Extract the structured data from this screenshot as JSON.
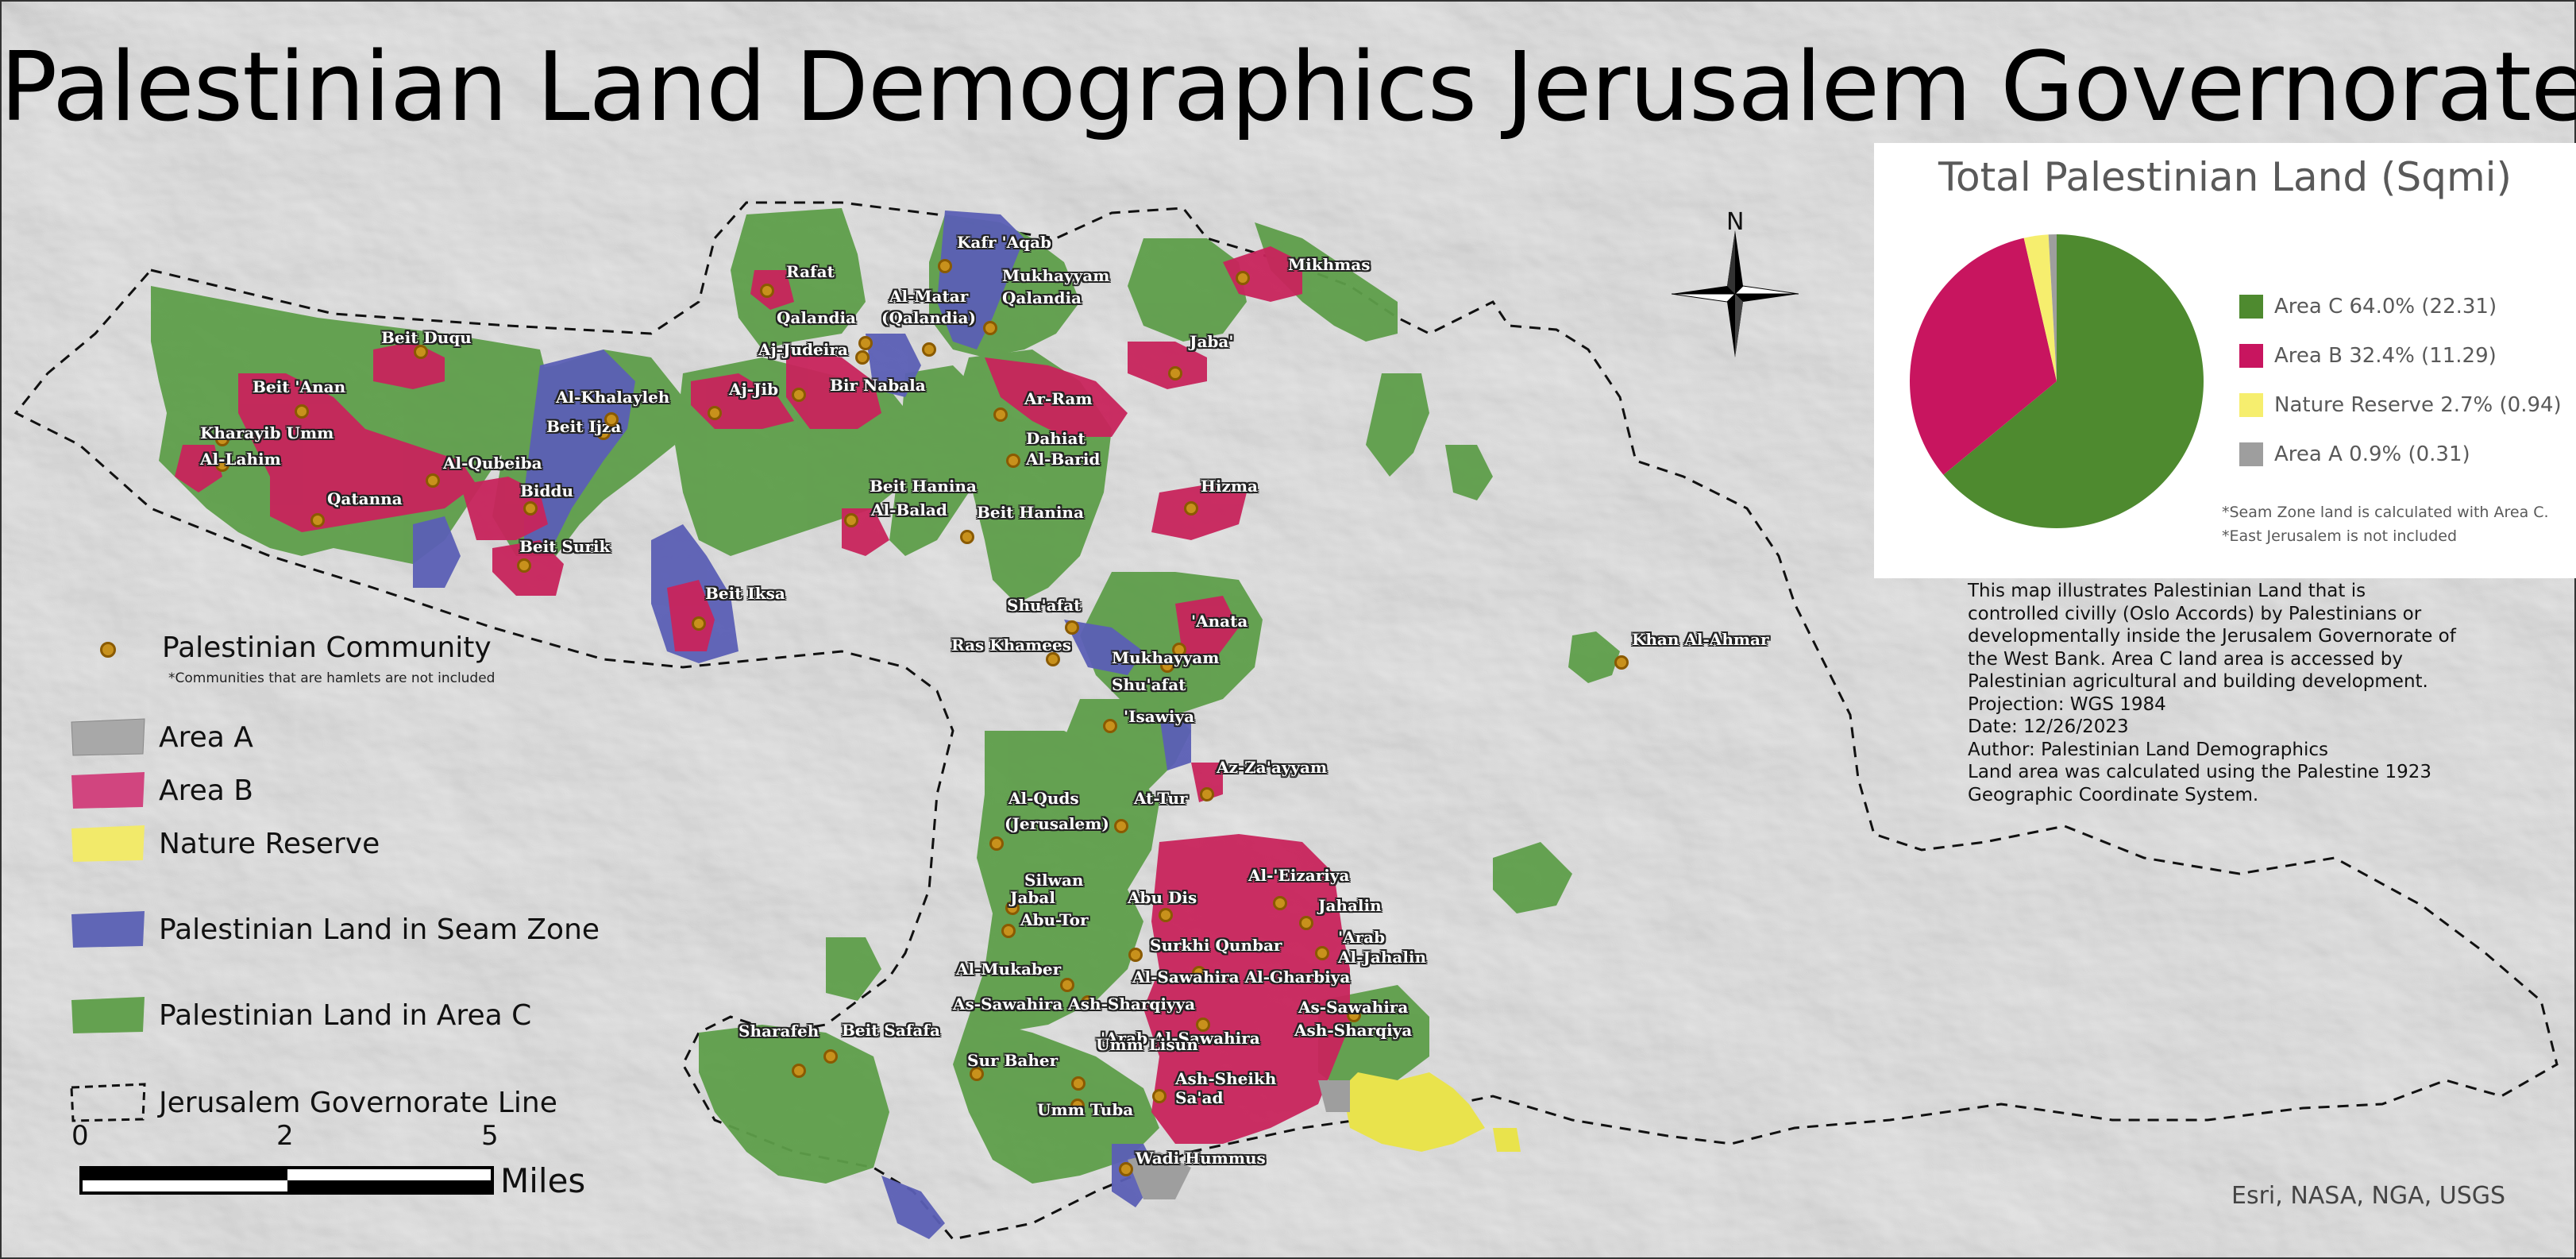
{
  "map": {
    "title": "Palestinian Land Demographics Jerusalem Governorate",
    "credits": "Esri, NASA, NGA, USGS",
    "north_label": "N",
    "colors": {
      "area_a": "#a8a8a8",
      "area_b": "#c8255e",
      "nature_reserve": "#f0ea5a",
      "seam_zone": "#5a5fb8",
      "area_c": "#5a9b45",
      "community": "#c8911c"
    }
  },
  "legend": {
    "community": {
      "label": "Palestinian Community",
      "note": "*Communities that are hamlets are not included"
    },
    "items": [
      {
        "label": "Area A",
        "color": "#a8a8a8"
      },
      {
        "label": "Area B",
        "color": "#d1457f"
      },
      {
        "label": "Nature Reserve",
        "color": "#f2ea6a"
      },
      {
        "label": "Palestinian Land in Seam Zone",
        "color": "#6066b6"
      },
      {
        "label": "Palestinian Land in Area C",
        "color": "#64a150"
      },
      {
        "label": "Jerusalem Governorate Line",
        "color": "none"
      }
    ]
  },
  "scale_bar": {
    "ticks": [
      "0",
      "2",
      "5"
    ],
    "units": "Miles"
  },
  "chart_data": {
    "type": "pie",
    "title": "Total Palestinian Land (Sqmi)",
    "slices": [
      {
        "label": "Area C 64.0% (22.31)",
        "name": "Area C",
        "value": 22.31,
        "percent": 64.0,
        "color": "#4e8a2f"
      },
      {
        "label": "Area B 32.4% (11.29)",
        "name": "Area B",
        "value": 11.29,
        "percent": 32.4,
        "color": "#c8155f"
      },
      {
        "label": "Nature Reserve 2.7% (0.94)",
        "name": "Nature Reserve",
        "value": 0.94,
        "percent": 2.7,
        "color": "#f6ee6e"
      },
      {
        "label": "Area A 0.9% (0.31)",
        "name": "Area A",
        "value": 0.31,
        "percent": 0.9,
        "color": "#9e9e9e"
      }
    ],
    "legend_position": "right",
    "notes": [
      "*Seam Zone land is calculated with Area C.",
      "*East Jerusalem is not included"
    ]
  },
  "description": [
    "This map illustrates Palestinian Land that is",
    "controlled civilly (Oslo Accords) by Palestinians or",
    "developmentally inside the Jerusalem Governorate of",
    "the West Bank. Area C land area is accessed by",
    "Palestinian agricultural and building development.",
    "Projection: WGS 1984",
    "Date: 12/26/2023",
    "Author: Palestinian Land Demographics",
    "Land area was calculated using the Palestine 1923",
    "Geographic Coordinate System."
  ],
  "places": [
    "Beit Duqu",
    "Beit 'Anan",
    "Kharayib Umm",
    "Al-Lahim",
    "Al-Qubeiba",
    "Beit Ijza",
    "Al-Khalayleh",
    "Qatanna",
    "Biddu",
    "Beit Surik",
    "Beit Iksa",
    "Rafat",
    "Qalandia",
    "Aj-Judeira",
    "Aj-Jib",
    "Bir Nabala",
    "Kafr 'Aqab",
    "Al-Matar",
    "(Qalandia)",
    "Mukhayyam",
    "Qalandia",
    "Mikhmas",
    "Jaba'",
    "Ar-Ram",
    "Dahiat",
    "Al-Barid",
    "Beit Hanina",
    "Al-Balad",
    "Beit Hanina",
    "Hizma",
    "Shu'afat",
    "Ras Khamees",
    "'Anata",
    "Mukhayyam",
    "Shu'afat",
    "'Isawiya",
    "Khan Al-Ahmar",
    "Az-Za'ayyam",
    "Al-Quds",
    "(Jerusalem)",
    "At-Tur",
    "Silwan",
    "Abu Dis",
    "Al-'Eizariya",
    "Jahalin",
    "Abu-Tor",
    "'Arab",
    "Al-Jahalin",
    "Surkhi Qunbar",
    "Jabal",
    "Al-Mukaber",
    "Al-Sawahira Al-Gharbiya",
    "As-Sawahira Ash-Sharqiyya",
    "As-Sawahira",
    "Ash-Sharqiya",
    "'Arab Al-Sawahira",
    "Sharafeh",
    "Beit Safafa",
    "Sur Baher",
    "Umm Lisun",
    "Ash-Sheikh",
    "Sa'ad",
    "Umm Tuba",
    "Wadi Hummus"
  ]
}
